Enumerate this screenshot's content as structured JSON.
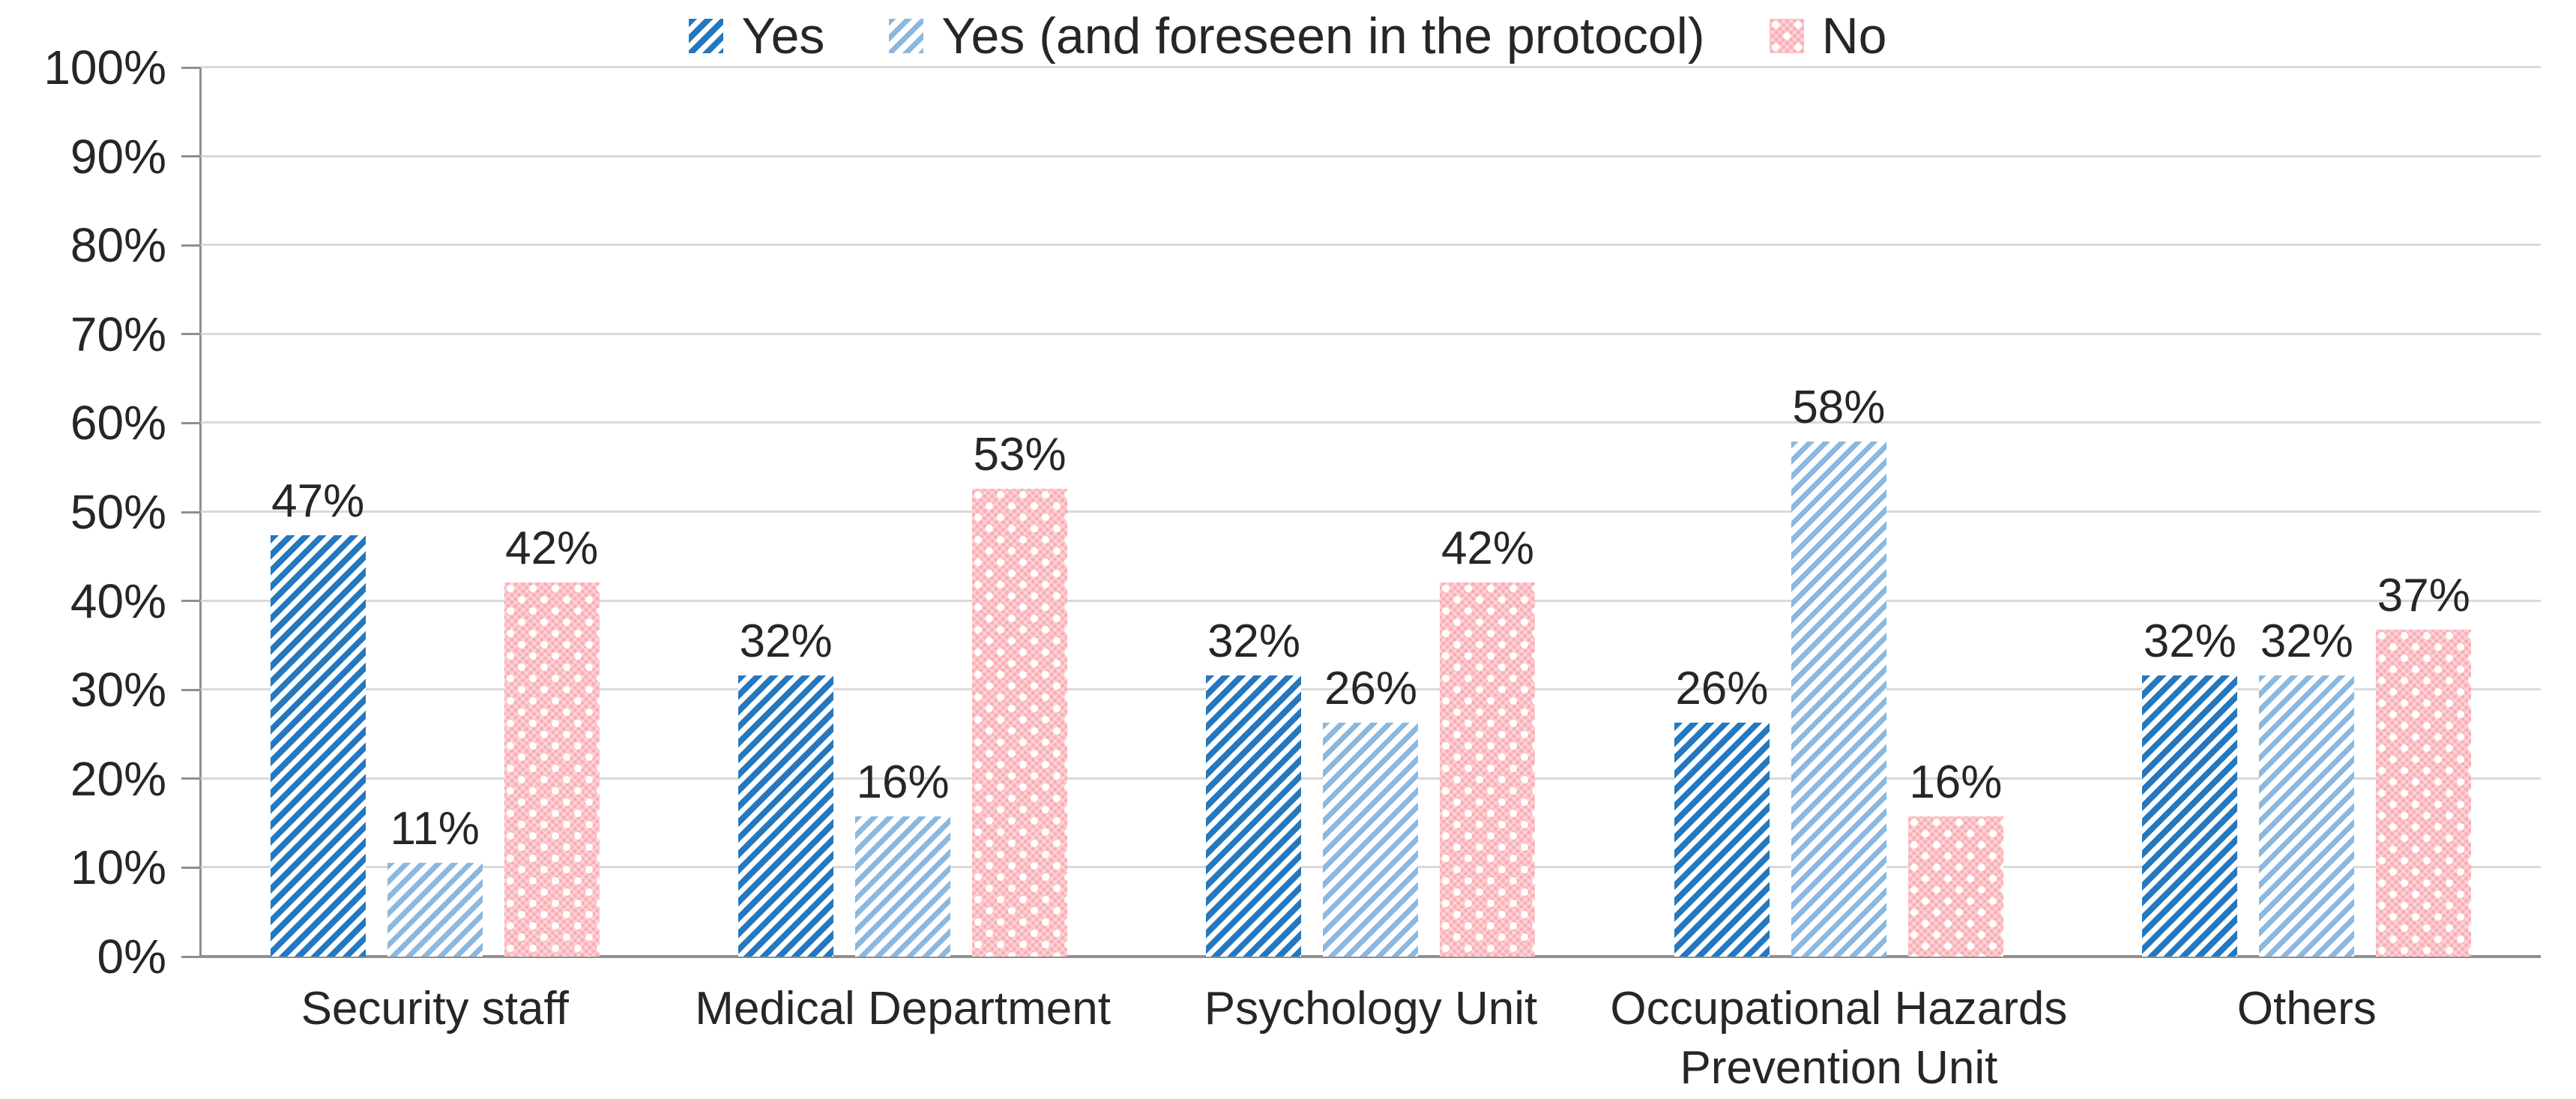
{
  "chart_data": {
    "type": "bar",
    "title": "",
    "categories": [
      "Security staff",
      "Medical Department",
      "Psychology Unit",
      "Occupational Hazards Prevention Unit",
      "Others"
    ],
    "series": [
      {
        "name": "Yes",
        "pattern": "dark-blue-diagonal-stripes",
        "color": "#2478BF",
        "values": [
          47,
          32,
          32,
          26,
          32
        ],
        "labels": [
          "47%",
          "32%",
          "32%",
          "26%",
          "32%"
        ],
        "bar_heights_pct": [
          47.4,
          31.6,
          31.6,
          26.3,
          31.6
        ]
      },
      {
        "name": "Yes (and foreseen in the protocol)",
        "pattern": "light-blue-diagonal-stripes",
        "color": "#8AB8E0",
        "values": [
          11,
          16,
          26,
          58,
          32
        ],
        "labels": [
          "11%",
          "16%",
          "26%",
          "58%",
          "32%"
        ],
        "bar_heights_pct": [
          10.5,
          15.8,
          26.3,
          57.9,
          31.6
        ]
      },
      {
        "name": "No",
        "pattern": "pink-dotted",
        "color": "#F9ACB2",
        "values": [
          42,
          53,
          42,
          16,
          37
        ],
        "labels": [
          "42%",
          "53%",
          "42%",
          "16%",
          "37%"
        ],
        "bar_heights_pct": [
          42.1,
          52.6,
          42.1,
          15.8,
          36.8
        ]
      }
    ],
    "y_axis": {
      "min": 0,
      "max": 100,
      "step": 10,
      "tick_labels": [
        "0%",
        "10%",
        "20%",
        "30%",
        "40%",
        "50%",
        "60%",
        "70%",
        "80%",
        "90%",
        "100%"
      ]
    },
    "legend": {
      "position": "top",
      "entries": [
        "Yes",
        "Yes (and foreseen in the protocol)",
        "No"
      ]
    },
    "grid": true,
    "data_labels_shown": true
  },
  "colors": {
    "gridline": "#d9d9d9",
    "axis": "#8f8f8f",
    "text": "#262626",
    "series_yes": "#2478BF",
    "series_yes_protocol": "#8AB8E0",
    "series_no": "#F9ACB2"
  }
}
